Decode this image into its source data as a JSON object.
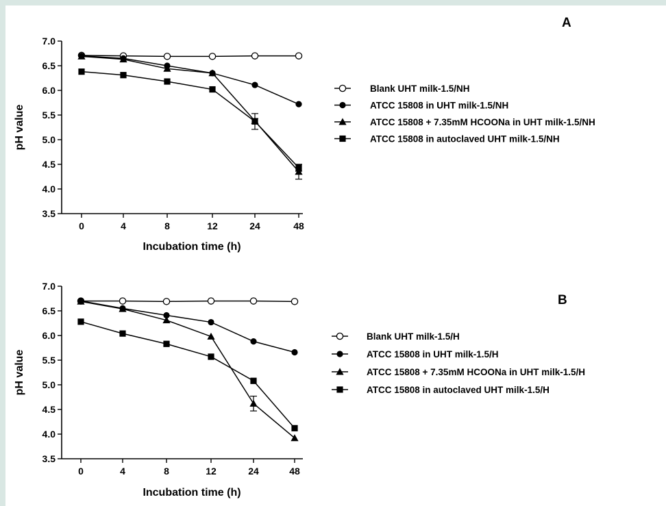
{
  "page": {
    "background": "#d9e7e3",
    "figure_background": "#ffffff"
  },
  "chart_data": [
    {
      "type": "line",
      "panel_label": "A",
      "xlabel": "Incubation time (h)",
      "ylabel": "pH value",
      "categories": [
        "0",
        "4",
        "8",
        "12",
        "24",
        "48"
      ],
      "yticks": [
        "3.5",
        "4.0",
        "4.5",
        "5.0",
        "5.5",
        "6.0",
        "6.5",
        "7.0"
      ],
      "ylim": [
        3.5,
        7.0
      ],
      "grid": false,
      "legend_position": "right",
      "series": [
        {
          "name": "Blank UHT milk-1.5/NH",
          "marker": "open-circle",
          "values": [
            6.71,
            6.7,
            6.69,
            6.69,
            6.7,
            6.7
          ],
          "errors": [
            0,
            0,
            0,
            0,
            0,
            0
          ]
        },
        {
          "name": "ATCC 15808 in UHT milk-1.5/NH",
          "marker": "filled-circle",
          "values": [
            6.7,
            6.65,
            6.5,
            6.35,
            6.11,
            5.72
          ],
          "errors": [
            0,
            0,
            0,
            0,
            0,
            0
          ]
        },
        {
          "name": "ATCC 15808 + 7.35mM HCOONa in UHT milk-1.5/NH",
          "marker": "filled-triangle",
          "values": [
            6.69,
            6.63,
            6.44,
            6.35,
            5.38,
            4.35
          ],
          "errors": [
            0,
            0,
            0,
            0,
            0.05,
            0.15
          ]
        },
        {
          "name": "ATCC 15808 in autoclaved UHT milk-1.5/NH",
          "marker": "filled-square",
          "values": [
            6.38,
            6.31,
            6.18,
            6.02,
            5.37,
            4.43
          ],
          "errors": [
            0,
            0,
            0,
            0,
            0.16,
            0.07
          ]
        }
      ]
    },
    {
      "type": "line",
      "panel_label": "B",
      "xlabel": "Incubation time (h)",
      "ylabel": "pH value",
      "categories": [
        "0",
        "4",
        "8",
        "12",
        "24",
        "48"
      ],
      "yticks": [
        "3.5",
        "4.0",
        "4.5",
        "5.0",
        "5.5",
        "6.0",
        "6.5",
        "7.0"
      ],
      "ylim": [
        3.5,
        7.0
      ],
      "grid": false,
      "legend_position": "right",
      "series": [
        {
          "name": "Blank UHT milk-1.5/H",
          "marker": "open-circle",
          "values": [
            6.7,
            6.7,
            6.69,
            6.7,
            6.7,
            6.69
          ],
          "errors": [
            0,
            0,
            0,
            0,
            0,
            0
          ]
        },
        {
          "name": "ATCC 15808 in UHT milk-1.5/H",
          "marker": "filled-circle",
          "values": [
            6.7,
            6.55,
            6.41,
            6.27,
            5.88,
            5.66
          ],
          "errors": [
            0,
            0,
            0,
            0,
            0,
            0
          ]
        },
        {
          "name": "ATCC 15808 + 7.35mM HCOONa in UHT milk-1.5/H",
          "marker": "filled-triangle",
          "values": [
            6.69,
            6.54,
            6.31,
            5.98,
            4.62,
            3.92
          ],
          "errors": [
            0,
            0,
            0,
            0,
            0.15,
            0
          ]
        },
        {
          "name": "ATCC 15808 in autoclaved UHT milk-1.5/H",
          "marker": "filled-square",
          "values": [
            6.28,
            6.04,
            5.83,
            5.57,
            5.08,
            4.12
          ],
          "errors": [
            0,
            0,
            0,
            0,
            0,
            0
          ]
        }
      ]
    }
  ]
}
